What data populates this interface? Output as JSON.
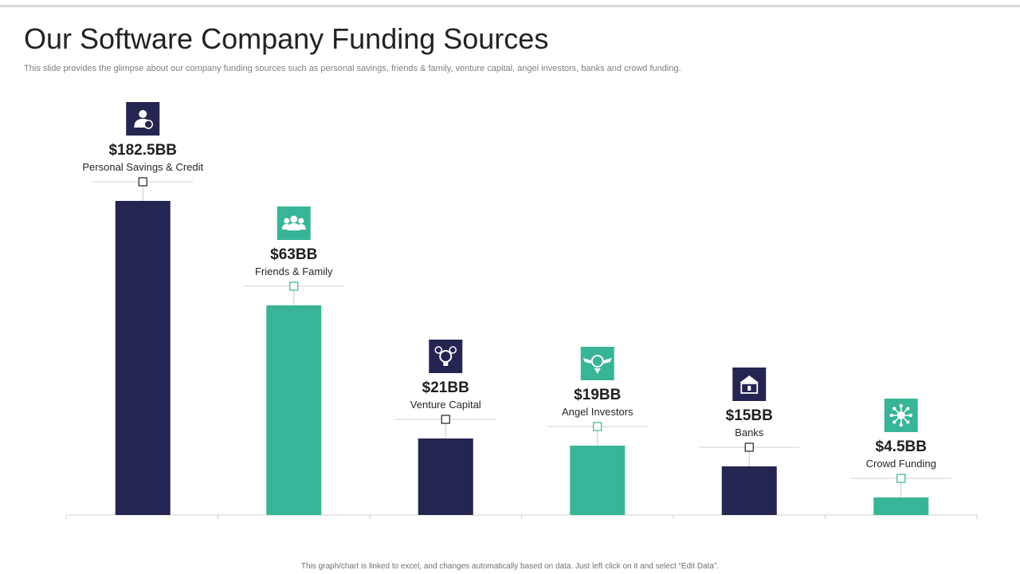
{
  "slide": {
    "title": "Our Software Company Funding Sources",
    "subtitle": "This slide provides the glimpse about our company funding sources such as personal savings, friends & family, venture capital, angel investors, banks and crowd funding.",
    "footnote": "This graph/chart is linked to excel, and changes automatically based on data. Just left click on it and select “Edit Data”."
  },
  "colors": {
    "navy": "#252552",
    "teal": "#38b597"
  },
  "chart_data": {
    "type": "bar",
    "categories": [
      "Personal Savings  & Credit",
      "Friends & Family",
      "Venture Capital",
      "Angel Investors",
      "Banks",
      "Crowd Funding"
    ],
    "values": [
      182.5,
      63,
      21,
      19,
      15,
      4.5
    ],
    "value_labels": [
      "$182.5BB",
      "$63BB",
      "$21BB",
      "$19BB",
      "$15BB",
      "$4.5BB"
    ],
    "bar_colors": [
      "navy",
      "teal",
      "navy",
      "teal",
      "navy",
      "teal"
    ],
    "icons": [
      "investor-icon",
      "people-icon",
      "venture-bulb-icon",
      "winged-coin-icon",
      "bank-icon",
      "network-icon"
    ],
    "title": "",
    "xlabel": "",
    "ylabel": "",
    "unit": "BB"
  }
}
